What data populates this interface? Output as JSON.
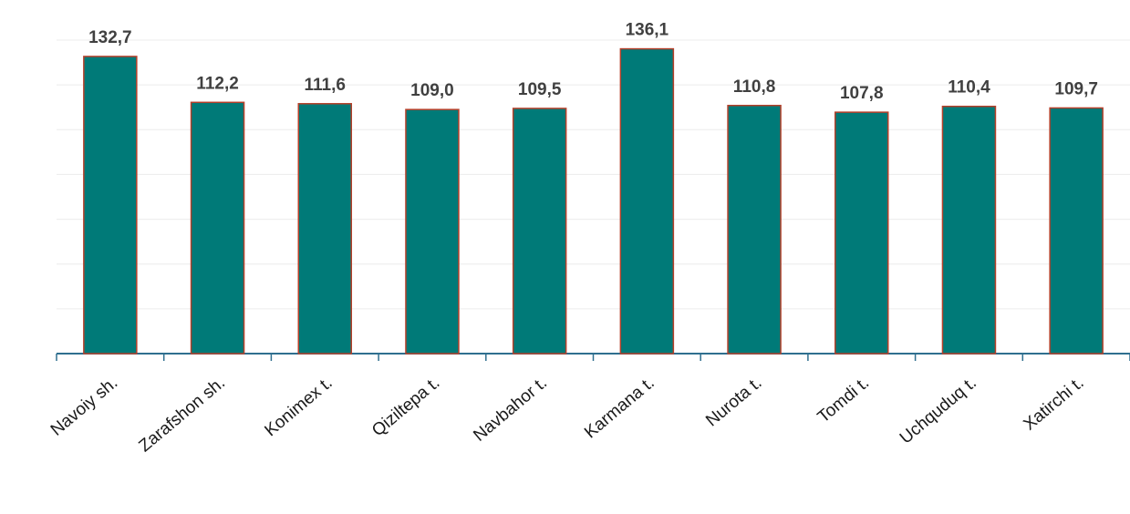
{
  "chart_data": {
    "type": "bar",
    "categories": [
      "Navoiy sh.",
      "Zarafshon sh.",
      "Konimex t.",
      "Qiziltepa t.",
      "Navbahor t.",
      "Karmana t.",
      "Nurota t.",
      "Tomdi t.",
      "Uchquduq t.",
      "Xatirchi t."
    ],
    "values": [
      132.7,
      112.2,
      111.6,
      109.0,
      109.5,
      136.1,
      110.8,
      107.8,
      110.4,
      109.7
    ],
    "value_labels": [
      "132,7",
      "112,2",
      "111,6",
      "109,0",
      "109,5",
      "136,1",
      "110,8",
      "107,8",
      "110,4",
      "109,7"
    ],
    "color": "#007a78",
    "edge_color": "#b5402a",
    "ylim": [
      0,
      140
    ],
    "yticks": [
      20,
      40,
      60,
      80,
      100,
      120,
      140
    ],
    "grid": true
  }
}
